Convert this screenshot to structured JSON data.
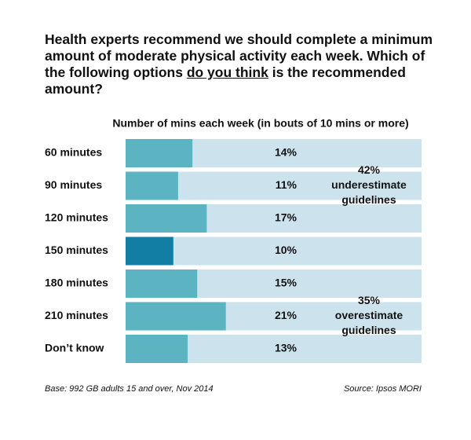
{
  "chart_data": {
    "type": "bar",
    "orientation": "horizontal",
    "title": [
      "Health experts recommend we should complete a minimum amount of moderate physical activity each week. Which of the following options ",
      "do you think",
      " is the recommended amount?"
    ],
    "subtitle": "Number of mins each week (in bouts of 10 mins or more)",
    "categories": [
      "60 minutes",
      "90 minutes",
      "120 minutes",
      "150 minutes",
      "180 minutes",
      "210 minutes",
      "Don’t know"
    ],
    "values": [
      14,
      11,
      17,
      10,
      15,
      21,
      13
    ],
    "value_labels": [
      "14%",
      "11%",
      "17%",
      "10%",
      "15%",
      "21%",
      "13%"
    ],
    "colors": [
      "#5cb4c2",
      "#5cb4c2",
      "#5cb4c2",
      "#137ea3",
      "#5cb4c2",
      "#5cb4c2",
      "#5cb4c2"
    ],
    "track_color": "#cce3ee",
    "xlim": [
      0,
      62
    ],
    "annotations": [
      {
        "lines": [
          "42%",
          "underestimate",
          "guidelines"
        ]
      },
      {
        "lines": [
          "35%",
          "overestimate",
          "guidelines"
        ]
      }
    ],
    "footnote": "Base: 992 GB adults 15 and over, Nov 2014",
    "source": "Source: Ipsos MORI"
  }
}
